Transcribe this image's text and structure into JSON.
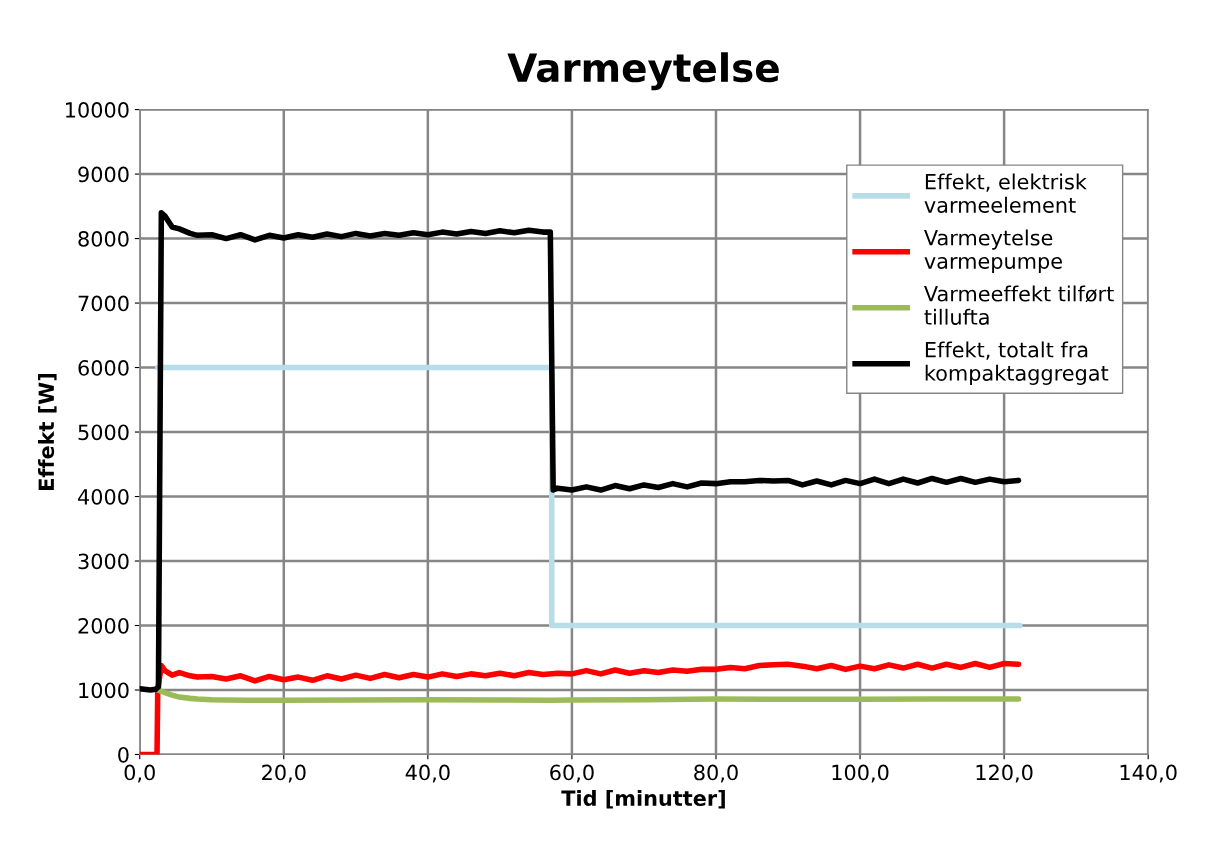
{
  "chart_data": {
    "type": "line",
    "title": "Varmeytelse",
    "xlabel": "Tid [minutter]",
    "ylabel": "Effekt [W]",
    "xlim": [
      0,
      140
    ],
    "ylim": [
      0,
      10000
    ],
    "xticks": [
      {
        "value": 0,
        "label": "0,0"
      },
      {
        "value": 20,
        "label": "20,0"
      },
      {
        "value": 40,
        "label": "40,0"
      },
      {
        "value": 60,
        "label": "60,0"
      },
      {
        "value": 80,
        "label": "80,0"
      },
      {
        "value": 100,
        "label": "100,0"
      },
      {
        "value": 120,
        "label": "120,0"
      },
      {
        "value": 140,
        "label": "140,0"
      }
    ],
    "yticks": [
      0,
      1000,
      2000,
      3000,
      4000,
      5000,
      6000,
      7000,
      8000,
      9000,
      10000
    ],
    "grid": true,
    "legend": "top right",
    "marker": "none",
    "line_style": "solid",
    "series": [
      {
        "name": "Effekt, elektrisk varmeelement",
        "color": "#b7dde8",
        "x": [
          2.5,
          57.2,
          57.2,
          122.2
        ],
        "values": [
          6000,
          6000,
          2000,
          2000
        ]
      },
      {
        "name": "Varmeytelse varmepumpe",
        "color": "#ff0000",
        "x": [
          0,
          2.4,
          2.5,
          3.0,
          3.5,
          4.5,
          5.5,
          7,
          8,
          10,
          12,
          14,
          16,
          18,
          20,
          22,
          24,
          26,
          28,
          30,
          32,
          34,
          36,
          38,
          40,
          42,
          44,
          46,
          48,
          50,
          52,
          54,
          56,
          58,
          60,
          62,
          64,
          66,
          68,
          70,
          72,
          74,
          76,
          78,
          80,
          82,
          84,
          86,
          88,
          90,
          92,
          94,
          96,
          98,
          100,
          102,
          104,
          106,
          108,
          110,
          112,
          114,
          116,
          118,
          120,
          122
        ],
        "values": [
          0,
          0,
          1000,
          1380,
          1300,
          1230,
          1270,
          1220,
          1200,
          1210,
          1170,
          1220,
          1140,
          1210,
          1160,
          1200,
          1150,
          1220,
          1170,
          1230,
          1180,
          1240,
          1190,
          1240,
          1200,
          1250,
          1210,
          1250,
          1220,
          1260,
          1220,
          1270,
          1240,
          1260,
          1250,
          1300,
          1250,
          1310,
          1260,
          1300,
          1270,
          1310,
          1290,
          1320,
          1320,
          1350,
          1330,
          1380,
          1390,
          1400,
          1370,
          1330,
          1380,
          1320,
          1370,
          1330,
          1390,
          1340,
          1400,
          1340,
          1400,
          1350,
          1410,
          1350,
          1410,
          1400
        ]
      },
      {
        "name": "Varmeeffekt tilført tillufta",
        "color": "#9bbb59",
        "x": [
          2.5,
          3.5,
          4.5,
          5.5,
          7,
          8,
          10,
          12,
          15,
          20,
          30,
          40,
          50,
          57,
          60,
          70,
          80,
          90,
          100,
          110,
          122
        ],
        "values": [
          1000,
          960,
          920,
          890,
          870,
          860,
          850,
          845,
          840,
          840,
          845,
          850,
          845,
          840,
          845,
          850,
          860,
          855,
          855,
          860,
          860
        ]
      },
      {
        "name": "Effekt, totalt fra kompaktaggregat",
        "color": "#000000",
        "x": [
          0,
          1.5,
          2.2,
          2.6,
          3.0,
          3.5,
          4.5,
          5.5,
          7,
          8,
          10,
          12,
          14,
          16,
          18,
          20,
          22,
          24,
          26,
          28,
          30,
          32,
          34,
          36,
          38,
          40,
          42,
          44,
          46,
          48,
          50,
          52,
          54,
          56,
          57.0,
          57.4,
          58,
          60,
          62,
          64,
          66,
          68,
          70,
          72,
          74,
          76,
          78,
          80,
          82,
          84,
          86,
          88,
          90,
          92,
          94,
          96,
          98,
          100,
          102,
          104,
          106,
          108,
          110,
          112,
          114,
          116,
          118,
          120,
          122
        ],
        "values": [
          1020,
          1000,
          1010,
          1050,
          8400,
          8350,
          8180,
          8150,
          8080,
          8050,
          8060,
          8000,
          8060,
          7980,
          8050,
          8010,
          8060,
          8020,
          8070,
          8030,
          8080,
          8040,
          8080,
          8050,
          8090,
          8060,
          8100,
          8070,
          8110,
          8080,
          8120,
          8090,
          8130,
          8100,
          8100,
          4100,
          4130,
          4100,
          4150,
          4100,
          4170,
          4120,
          4180,
          4140,
          4200,
          4150,
          4210,
          4200,
          4230,
          4230,
          4250,
          4240,
          4250,
          4180,
          4240,
          4180,
          4250,
          4200,
          4270,
          4200,
          4270,
          4210,
          4280,
          4220,
          4280,
          4220,
          4270,
          4230,
          4250
        ]
      }
    ]
  }
}
